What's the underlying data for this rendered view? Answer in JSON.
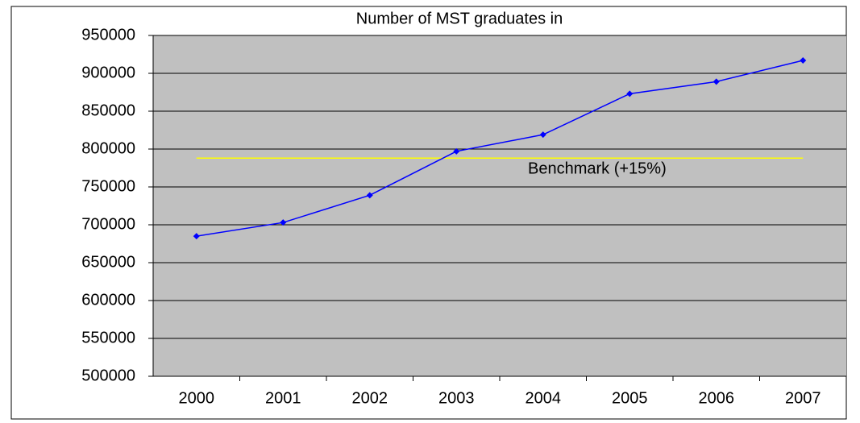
{
  "chart_data": {
    "type": "line",
    "title": "Number of MST graduates in",
    "categories": [
      "2000",
      "2001",
      "2002",
      "2003",
      "2004",
      "2005",
      "2006",
      "2007"
    ],
    "values": [
      685000,
      703000,
      739000,
      797000,
      819000,
      873000,
      889000,
      917000
    ],
    "color": "#0000ff",
    "ylim": [
      500000,
      950000
    ],
    "yticks": [
      500000,
      550000,
      600000,
      650000,
      700000,
      750000,
      800000,
      850000,
      900000,
      950000
    ],
    "grid": true,
    "benchmark": {
      "label": "Benchmark (+15%)",
      "value": 788000,
      "color": "#ffff00"
    }
  }
}
